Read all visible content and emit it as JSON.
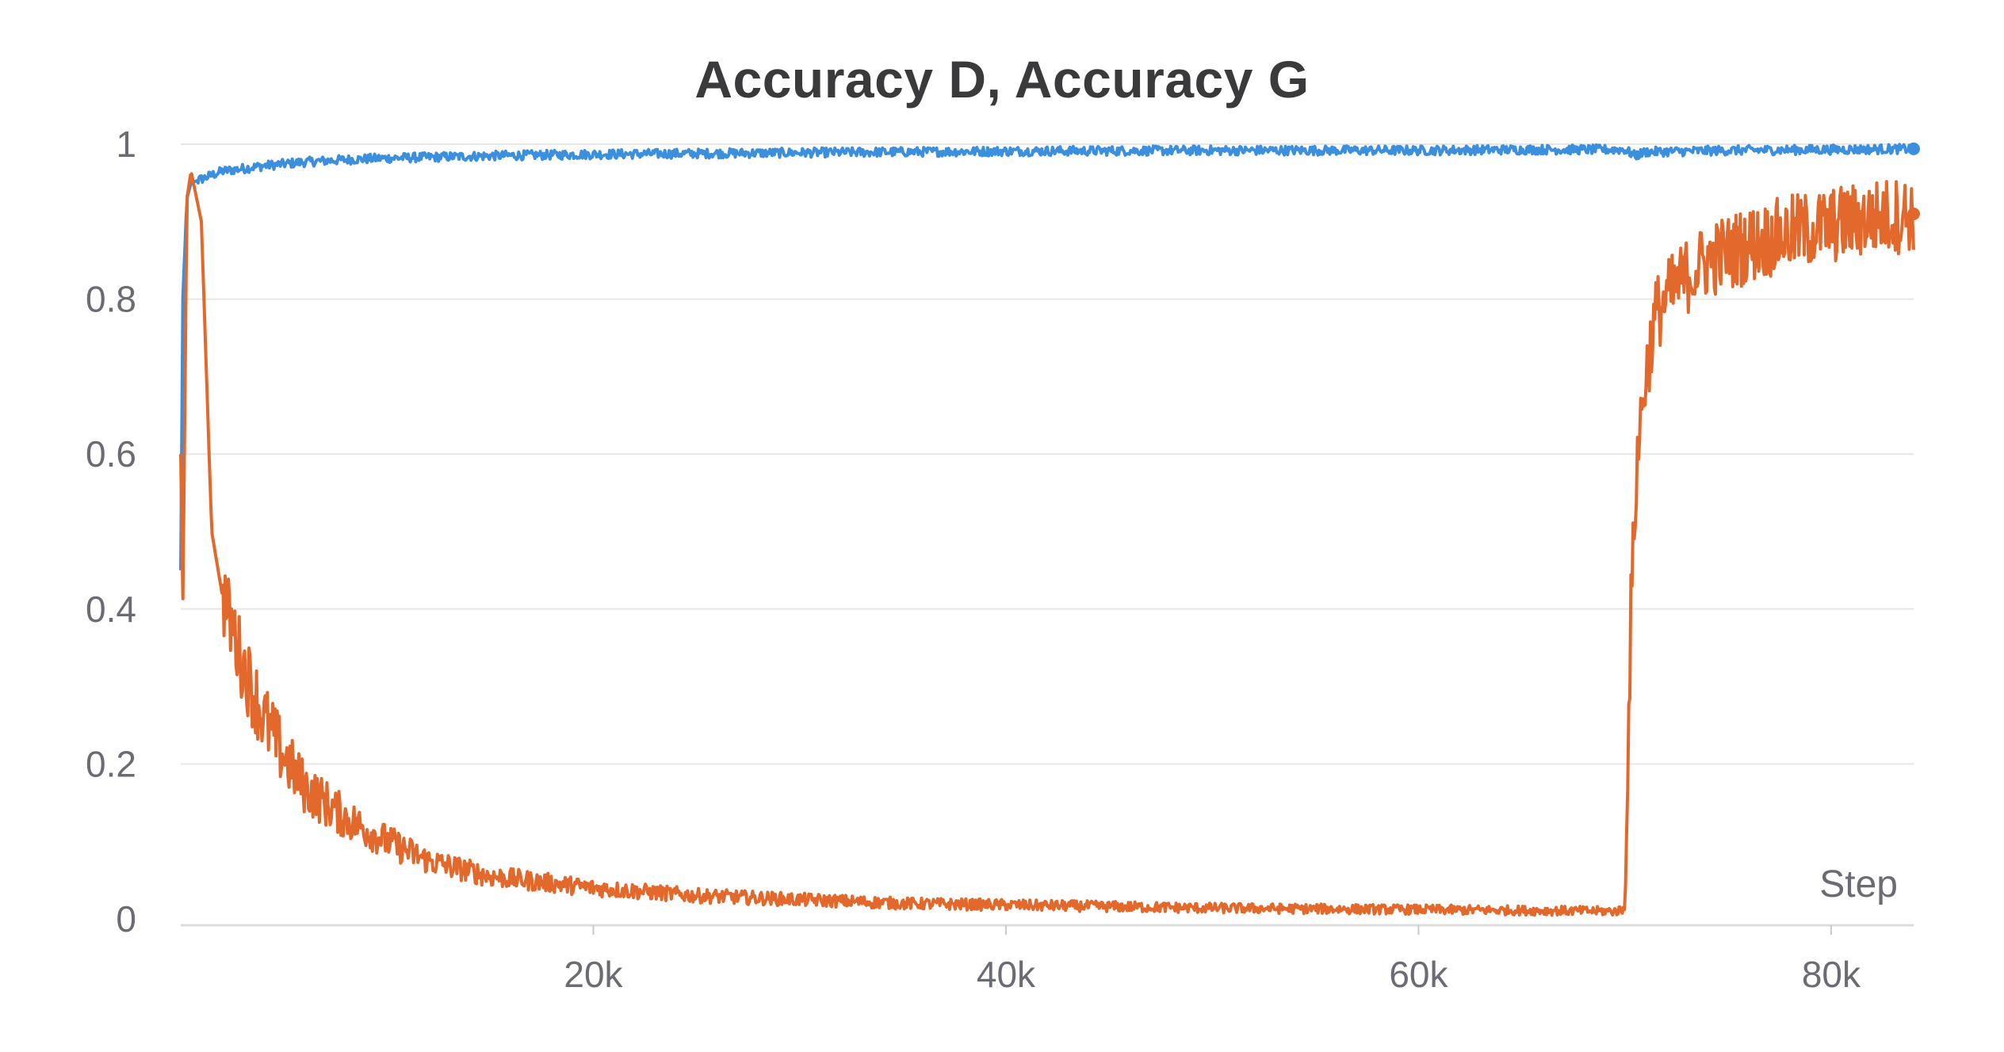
{
  "chart_data": {
    "type": "line",
    "title": "Accuracy D, Accuracy G",
    "xlabel": "Step",
    "ylabel": "",
    "xlim": [
      0,
      84000
    ],
    "ylim": [
      0,
      1
    ],
    "x_ticks": [
      20000,
      40000,
      60000,
      80000
    ],
    "x_tick_labels": [
      "20k",
      "40k",
      "60k",
      "80k"
    ],
    "y_ticks": [
      0,
      0.2,
      0.4,
      0.6,
      0.8,
      1
    ],
    "y_tick_labels": [
      "0",
      "0.2",
      "0.4",
      "0.6",
      "0.8",
      "1"
    ],
    "grid": true,
    "legend": "none",
    "series": [
      {
        "color": "#3b8fdc",
        "x": [
          0,
          100,
          300,
          500,
          1000,
          2000,
          4000,
          6000,
          8000,
          10000,
          15000,
          20000,
          30000,
          40000,
          50000,
          60000,
          65000,
          70000,
          70500,
          71000,
          75000,
          80000,
          84000
        ],
        "y": [
          0.45,
          0.8,
          0.93,
          0.95,
          0.955,
          0.965,
          0.972,
          0.977,
          0.98,
          0.982,
          0.985,
          0.987,
          0.989,
          0.991,
          0.992,
          0.992,
          0.993,
          0.993,
          0.985,
          0.99,
          0.992,
          0.993,
          0.994
        ]
      },
      {
        "color": "#e2692b",
        "x": [
          0,
          100,
          300,
          500,
          1000,
          1500,
          2000,
          3000,
          4000,
          5000,
          6000,
          8000,
          10000,
          12000,
          15000,
          20000,
          25000,
          30000,
          35000,
          40000,
          50000,
          60000,
          65000,
          69500,
          70000,
          70300,
          70600,
          71000,
          71500,
          72000,
          73000,
          74000,
          76000,
          78000,
          80000,
          82000,
          84000
        ],
        "y": [
          0.6,
          0.4,
          0.93,
          0.965,
          0.9,
          0.5,
          0.42,
          0.33,
          0.26,
          0.21,
          0.17,
          0.13,
          0.1,
          0.075,
          0.055,
          0.04,
          0.03,
          0.025,
          0.02,
          0.018,
          0.014,
          0.012,
          0.011,
          0.01,
          0.012,
          0.4,
          0.6,
          0.7,
          0.78,
          0.8,
          0.83,
          0.85,
          0.87,
          0.885,
          0.895,
          0.905,
          0.91
        ]
      }
    ]
  }
}
